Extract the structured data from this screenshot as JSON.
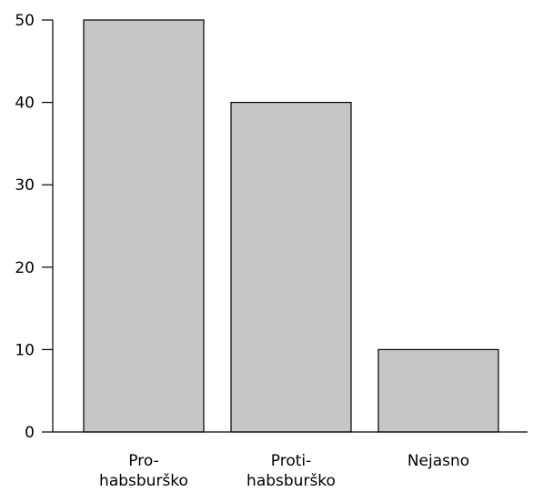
{
  "chart_data": {
    "type": "bar",
    "title": "",
    "xlabel": "",
    "ylabel": "",
    "categories": [
      [
        "Pro-",
        "habsburško"
      ],
      [
        "Proti-",
        "habsburško"
      ],
      [
        "Nejasno"
      ]
    ],
    "values": [
      50,
      40,
      10
    ],
    "ylim": [
      0,
      50
    ],
    "yticks": [
      0,
      10,
      20,
      30,
      40,
      50
    ],
    "grid": false,
    "legend": "none",
    "bar_color": "#c6c6c6",
    "bar_edge_color": "#000000"
  }
}
